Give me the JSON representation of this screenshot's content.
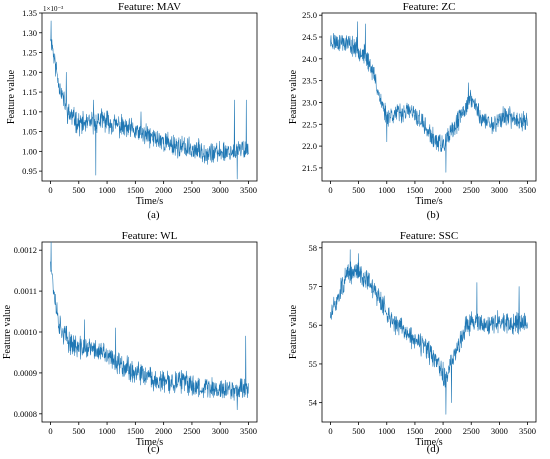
{
  "figure": {
    "series_color": "#1f77b4"
  },
  "chart_data": [
    {
      "type": "line",
      "panel_label": "(a)",
      "title": "Feature: MAV",
      "xlabel": "Time/s",
      "ylabel": "Feature value",
      "y_offset_text": "1×10⁻³",
      "xlim": [
        -150,
        3650
      ],
      "ylim": [
        0.925,
        1.35
      ],
      "xticks": [
        0,
        500,
        1000,
        1500,
        2000,
        2500,
        3000,
        3500
      ],
      "yticks": [
        0.95,
        1.0,
        1.05,
        1.1,
        1.15,
        1.2,
        1.25,
        1.3,
        1.35
      ],
      "ytick_labels": [
        "0.95",
        "1.00",
        "1.05",
        "1.10",
        "1.15",
        "1.20",
        "1.25",
        "1.30",
        "1.35"
      ],
      "grid": false,
      "trend": [
        [
          0,
          1.3
        ],
        [
          60,
          1.24
        ],
        [
          150,
          1.17
        ],
        [
          300,
          1.1
        ],
        [
          500,
          1.07
        ],
        [
          700,
          1.07
        ],
        [
          900,
          1.08
        ],
        [
          1100,
          1.07
        ],
        [
          1300,
          1.06
        ],
        [
          1500,
          1.05
        ],
        [
          1700,
          1.04
        ],
        [
          1900,
          1.03
        ],
        [
          2100,
          1.02
        ],
        [
          2300,
          1.01
        ],
        [
          2500,
          1.005
        ],
        [
          2700,
          1.0
        ],
        [
          2900,
          0.995
        ],
        [
          3100,
          1.0
        ],
        [
          3300,
          1.0
        ],
        [
          3500,
          1.01
        ]
      ],
      "noise": 0.022,
      "peaks": [
        [
          10,
          1.33
        ],
        [
          280,
          1.2
        ],
        [
          760,
          1.13
        ],
        [
          1600,
          1.1
        ],
        [
          3250,
          1.13
        ],
        [
          3460,
          1.13
        ],
        [
          800,
          0.94
        ],
        [
          3300,
          0.93
        ]
      ],
      "seed": 11
    },
    {
      "type": "line",
      "panel_label": "(b)",
      "title": "Feature: ZC",
      "xlabel": "Time/s",
      "ylabel": "Feature value",
      "xlim": [
        -150,
        3650
      ],
      "ylim": [
        21.2,
        25.05
      ],
      "xticks": [
        0,
        500,
        1000,
        1500,
        2000,
        2500,
        3000,
        3500
      ],
      "yticks": [
        21.5,
        22.0,
        22.5,
        23.0,
        23.5,
        24.0,
        24.5,
        25.0
      ],
      "ytick_labels": [
        "21.5",
        "22.0",
        "22.5",
        "23.0",
        "23.5",
        "24.0",
        "24.5",
        "25.0"
      ],
      "grid": false,
      "trend": [
        [
          0,
          24.4
        ],
        [
          200,
          24.4
        ],
        [
          400,
          24.3
        ],
        [
          600,
          24.1
        ],
        [
          700,
          23.9
        ],
        [
          800,
          23.5
        ],
        [
          900,
          23.0
        ],
        [
          1000,
          22.7
        ],
        [
          1200,
          22.75
        ],
        [
          1400,
          22.8
        ],
        [
          1600,
          22.6
        ],
        [
          1800,
          22.2
        ],
        [
          2000,
          22.0
        ],
        [
          2200,
          22.4
        ],
        [
          2400,
          22.9
        ],
        [
          2500,
          23.1
        ],
        [
          2700,
          22.6
        ],
        [
          2900,
          22.5
        ],
        [
          3100,
          22.7
        ],
        [
          3300,
          22.6
        ],
        [
          3500,
          22.6
        ]
      ],
      "noise": 0.18,
      "peaks": [
        [
          480,
          24.85
        ],
        [
          620,
          24.8
        ],
        [
          2050,
          21.4
        ],
        [
          2450,
          23.45
        ],
        [
          1000,
          22.1
        ]
      ],
      "seed": 23
    },
    {
      "type": "line",
      "panel_label": "(c)",
      "title": "Feature: WL",
      "xlabel": "Time/s",
      "ylabel": "Feature value",
      "xlim": [
        -150,
        3650
      ],
      "ylim": [
        0.00078,
        0.00122
      ],
      "xticks": [
        0,
        500,
        1000,
        1500,
        2000,
        2500,
        3000,
        3500
      ],
      "yticks": [
        0.0008,
        0.0009,
        0.001,
        0.0011,
        0.0012
      ],
      "ytick_labels": [
        "0.0008",
        "0.0009",
        "0.0010",
        "0.0011",
        "0.0012"
      ],
      "grid": false,
      "trend": [
        [
          0,
          0.00118
        ],
        [
          60,
          0.0011
        ],
        [
          150,
          0.00102
        ],
        [
          300,
          0.00098
        ],
        [
          500,
          0.00096
        ],
        [
          700,
          0.00096
        ],
        [
          900,
          0.00095
        ],
        [
          1100,
          0.00093
        ],
        [
          1300,
          0.00092
        ],
        [
          1500,
          0.0009
        ],
        [
          1700,
          0.00089
        ],
        [
          1900,
          0.00088
        ],
        [
          2100,
          0.000875
        ],
        [
          2300,
          0.00088
        ],
        [
          2500,
          0.00087
        ],
        [
          2700,
          0.000865
        ],
        [
          2900,
          0.00086
        ],
        [
          3100,
          0.00086
        ],
        [
          3300,
          0.00086
        ],
        [
          3500,
          0.000865
        ]
      ],
      "noise": 2.2e-05,
      "peaks": [
        [
          10,
          0.00122
        ],
        [
          600,
          0.00103
        ],
        [
          1150,
          0.00101
        ],
        [
          3450,
          0.00099
        ],
        [
          3300,
          0.00081
        ]
      ],
      "seed": 37
    },
    {
      "type": "line",
      "panel_label": "(d)",
      "title": "Feature: SSC",
      "xlabel": "Time/s",
      "ylabel": "Feature value",
      "xlim": [
        -150,
        3650
      ],
      "ylim": [
        53.5,
        58.15
      ],
      "xticks": [
        0,
        500,
        1000,
        1500,
        2000,
        2500,
        3000,
        3500
      ],
      "yticks": [
        54,
        55,
        56,
        57,
        58
      ],
      "ytick_labels": [
        "54",
        "55",
        "56",
        "57",
        "58"
      ],
      "grid": false,
      "trend": [
        [
          0,
          56.2
        ],
        [
          100,
          56.6
        ],
        [
          200,
          57.0
        ],
        [
          300,
          57.3
        ],
        [
          500,
          57.4
        ],
        [
          700,
          57.1
        ],
        [
          900,
          56.6
        ],
        [
          1100,
          56.1
        ],
        [
          1300,
          55.9
        ],
        [
          1500,
          55.6
        ],
        [
          1700,
          55.4
        ],
        [
          1900,
          55.0
        ],
        [
          2050,
          54.6
        ],
        [
          2200,
          55.2
        ],
        [
          2400,
          56.0
        ],
        [
          2600,
          56.1
        ],
        [
          2800,
          56.0
        ],
        [
          3000,
          56.1
        ],
        [
          3200,
          56.0
        ],
        [
          3400,
          56.1
        ],
        [
          3500,
          56.0
        ]
      ],
      "noise": 0.22,
      "peaks": [
        [
          350,
          57.95
        ],
        [
          500,
          57.85
        ],
        [
          2050,
          53.7
        ],
        [
          2150,
          54.0
        ],
        [
          3350,
          57.0
        ],
        [
          2600,
          57.1
        ]
      ],
      "seed": 51
    }
  ]
}
